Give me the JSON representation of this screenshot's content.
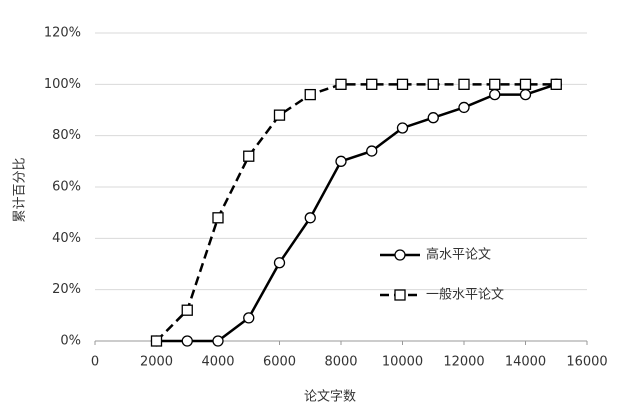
{
  "chart_data": {
    "type": "line",
    "x_label": "论文字数",
    "y_label": "累计百分比",
    "x": [
      2000,
      3000,
      4000,
      5000,
      6000,
      7000,
      8000,
      9000,
      10000,
      11000,
      12000,
      13000,
      14000,
      15000
    ],
    "series": [
      {
        "name": "高水平论文",
        "color": "#000000",
        "marker": "circle",
        "dashed": false,
        "values": [
          0,
          0,
          0,
          9,
          30.5,
          48,
          70,
          74,
          83,
          87,
          91,
          96,
          96,
          100
        ]
      },
      {
        "name": "一般水平论文",
        "color": "#000000",
        "marker": "square",
        "dashed": true,
        "values": [
          0,
          12,
          48,
          72,
          88,
          96,
          100,
          100,
          100,
          100,
          100,
          100,
          100,
          100
        ]
      }
    ],
    "xlim": [
      0,
      16000
    ],
    "xticks": [
      0,
      2000,
      4000,
      6000,
      8000,
      10000,
      12000,
      14000,
      16000
    ],
    "ylim": [
      0,
      120
    ],
    "yticks": [
      {
        "value": 0,
        "label": "0%"
      },
      {
        "value": 20,
        "label": "20%"
      },
      {
        "value": 40,
        "label": "40%"
      },
      {
        "value": 60,
        "label": "60%"
      },
      {
        "value": 80,
        "label": "80%"
      },
      {
        "value": 100,
        "label": "100%"
      },
      {
        "value": 120,
        "label": "120%"
      }
    ],
    "grid": true
  }
}
